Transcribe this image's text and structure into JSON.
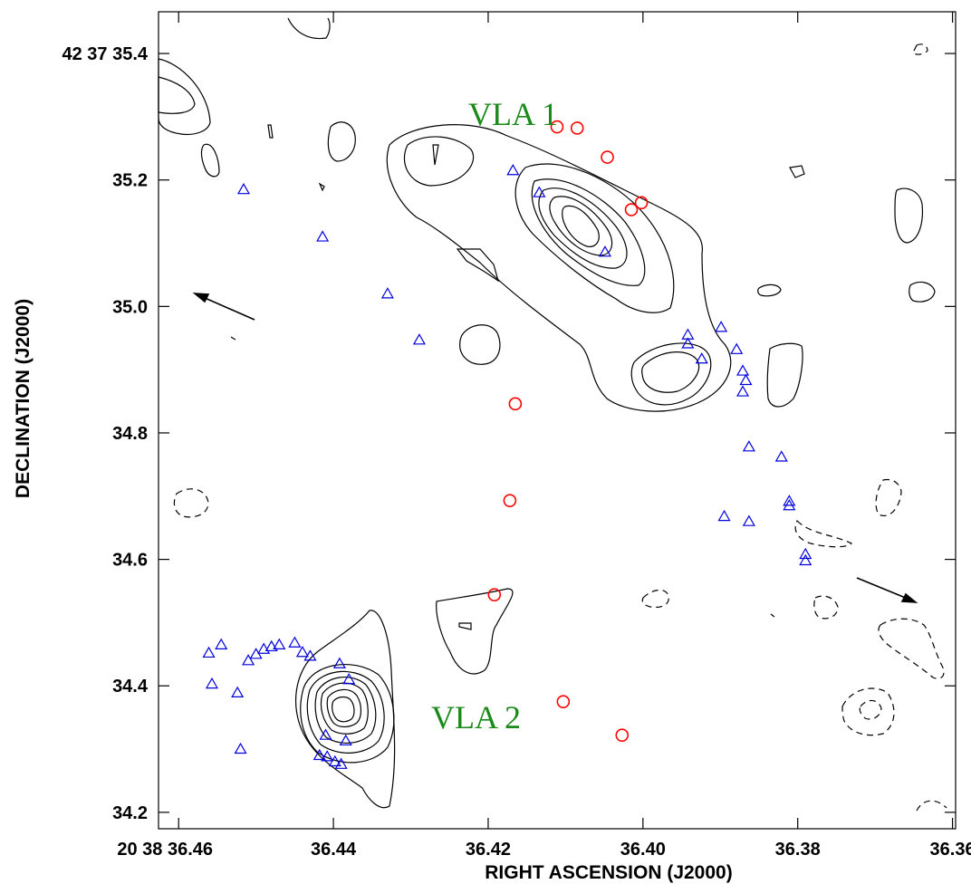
{
  "chart_data": {
    "type": "scatter",
    "title": "",
    "xlabel": "RIGHT ASCENSION (J2000)",
    "ylabel": "DECLINATION (J2000)",
    "x_ticks": [
      {
        "value": 36.46,
        "label": "20 38 36.46"
      },
      {
        "value": 36.44,
        "label": "36.44"
      },
      {
        "value": 36.42,
        "label": "36.42"
      },
      {
        "value": 36.4,
        "label": "36.40"
      },
      {
        "value": 36.38,
        "label": "36.38"
      },
      {
        "value": 36.36,
        "label": "36.36"
      }
    ],
    "y_ticks": [
      {
        "value": 35.4,
        "label": "42 37 35.4"
      },
      {
        "value": 35.2,
        "label": "35.2"
      },
      {
        "value": 35.0,
        "label": "35.0"
      },
      {
        "value": 34.8,
        "label": "34.8"
      },
      {
        "value": 34.6,
        "label": "34.6"
      },
      {
        "value": 34.4,
        "label": "34.4"
      },
      {
        "value": 34.2,
        "label": "34.2"
      }
    ],
    "xlim": [
      36.4626,
      36.3596
    ],
    "ylim": [
      34.174,
      35.466
    ],
    "grid": false,
    "annotations": [
      {
        "text": "VLA 1",
        "x": 36.409,
        "y": 35.285
      },
      {
        "text": "VLA 2",
        "x": 36.414,
        "y": 34.364
      }
    ],
    "colors": {
      "circles": "#ff0000",
      "triangles": "#0000dd",
      "contours": "#000000",
      "labels": "#1a8a1a"
    },
    "series": [
      {
        "marker": "circle",
        "points": [
          [
            36.4111,
            35.284
          ],
          [
            36.4085,
            35.282
          ],
          [
            36.4046,
            35.236
          ],
          [
            36.4015,
            35.153
          ],
          [
            36.4002,
            35.164
          ],
          [
            36.4165,
            34.846
          ],
          [
            36.4172,
            34.693
          ],
          [
            36.4192,
            34.544
          ],
          [
            36.4103,
            34.375
          ],
          [
            36.4027,
            34.322
          ]
        ]
      },
      {
        "marker": "triangle",
        "points": [
          [
            36.4516,
            35.185
          ],
          [
            36.4414,
            35.11
          ],
          [
            36.433,
            35.02
          ],
          [
            36.4289,
            34.947
          ],
          [
            36.4168,
            35.215
          ],
          [
            36.4134,
            35.18
          ],
          [
            36.4049,
            35.086
          ],
          [
            36.3942,
            34.955
          ],
          [
            36.3942,
            34.941
          ],
          [
            36.3899,
            34.967
          ],
          [
            36.3924,
            34.917
          ],
          [
            36.3879,
            34.932
          ],
          [
            36.3871,
            34.898
          ],
          [
            36.3867,
            34.883
          ],
          [
            36.3871,
            34.865
          ],
          [
            36.3863,
            34.778
          ],
          [
            36.3821,
            34.762
          ],
          [
            36.3895,
            34.668
          ],
          [
            36.3863,
            34.66
          ],
          [
            36.3811,
            34.692
          ],
          [
            36.3811,
            34.685
          ],
          [
            36.379,
            34.608
          ],
          [
            36.379,
            34.598
          ],
          [
            36.4561,
            34.452
          ],
          [
            36.4545,
            34.465
          ],
          [
            36.4557,
            34.403
          ],
          [
            36.4524,
            34.389
          ],
          [
            36.452,
            34.3
          ],
          [
            36.451,
            34.44
          ],
          [
            36.45,
            34.45
          ],
          [
            36.449,
            34.458
          ],
          [
            36.448,
            34.462
          ],
          [
            36.447,
            34.465
          ],
          [
            36.445,
            34.468
          ],
          [
            36.444,
            34.453
          ],
          [
            36.443,
            34.447
          ],
          [
            36.4392,
            34.435
          ],
          [
            36.438,
            34.41
          ],
          [
            36.441,
            34.322
          ],
          [
            36.4418,
            34.29
          ],
          [
            36.4408,
            34.288
          ],
          [
            36.4398,
            34.28
          ],
          [
            36.439,
            34.276
          ],
          [
            36.4384,
            34.313
          ]
        ]
      }
    ]
  }
}
